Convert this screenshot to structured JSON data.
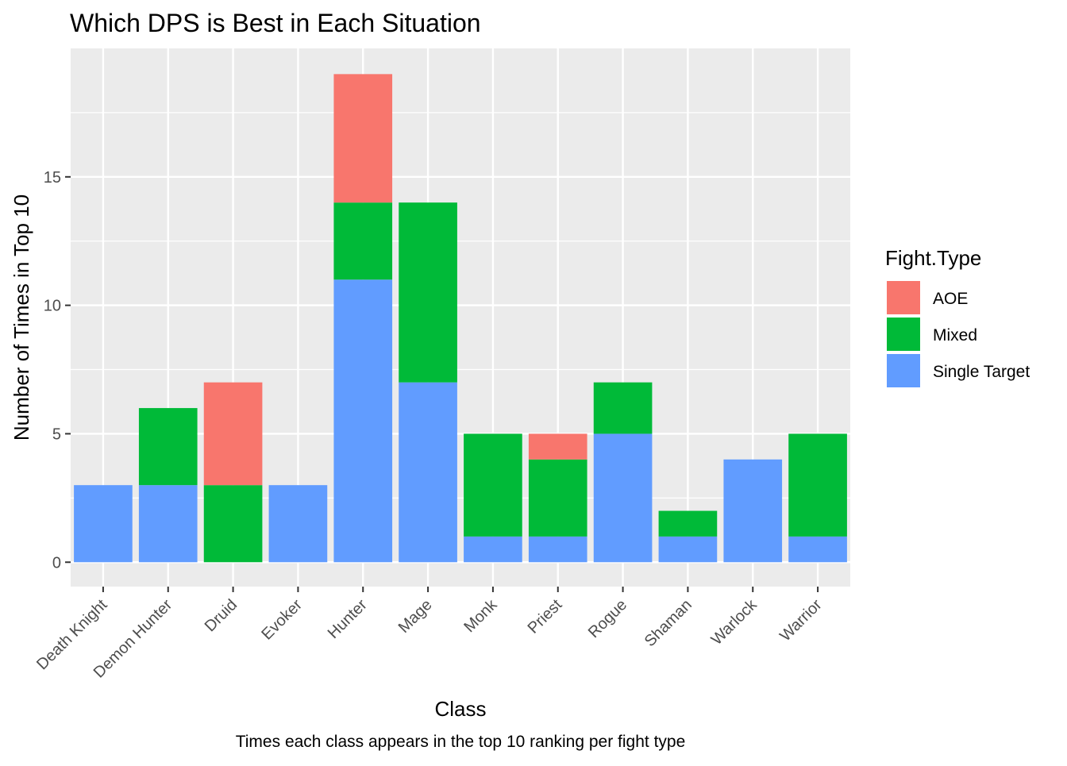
{
  "chart_data": {
    "type": "bar",
    "stacked": true,
    "title": "Which DPS is Best in Each Situation",
    "xlabel": "Class",
    "ylabel": "Number of Times in Top 10",
    "caption": "Times each class appears in the top 10 ranking per fight type",
    "categories": [
      "Death Knight",
      "Demon Hunter",
      "Druid",
      "Evoker",
      "Hunter",
      "Mage",
      "Monk",
      "Priest",
      "Rogue",
      "Shaman",
      "Warlock",
      "Warrior"
    ],
    "series": [
      {
        "name": "Single Target",
        "values": [
          3,
          3,
          0,
          3,
          11,
          7,
          1,
          1,
          5,
          1,
          4,
          1
        ],
        "color": "#619CFF"
      },
      {
        "name": "Mixed",
        "values": [
          0,
          3,
          3,
          0,
          3,
          7,
          4,
          3,
          2,
          1,
          0,
          4
        ],
        "color": "#00BA38"
      },
      {
        "name": "AOE",
        "values": [
          0,
          0,
          4,
          0,
          5,
          0,
          0,
          1,
          0,
          0,
          0,
          0
        ],
        "color": "#F8766D"
      }
    ],
    "ylim": [
      -0.95,
      20
    ],
    "yticks": [
      "0",
      "5",
      "10",
      "15"
    ],
    "legend": {
      "title": "Fight.Type",
      "position": "right",
      "entries": [
        "AOE",
        "Mixed",
        "Single Target"
      ]
    },
    "grid": true,
    "panel_background": "#EBEBEB",
    "grid_color": "#FFFFFF"
  }
}
